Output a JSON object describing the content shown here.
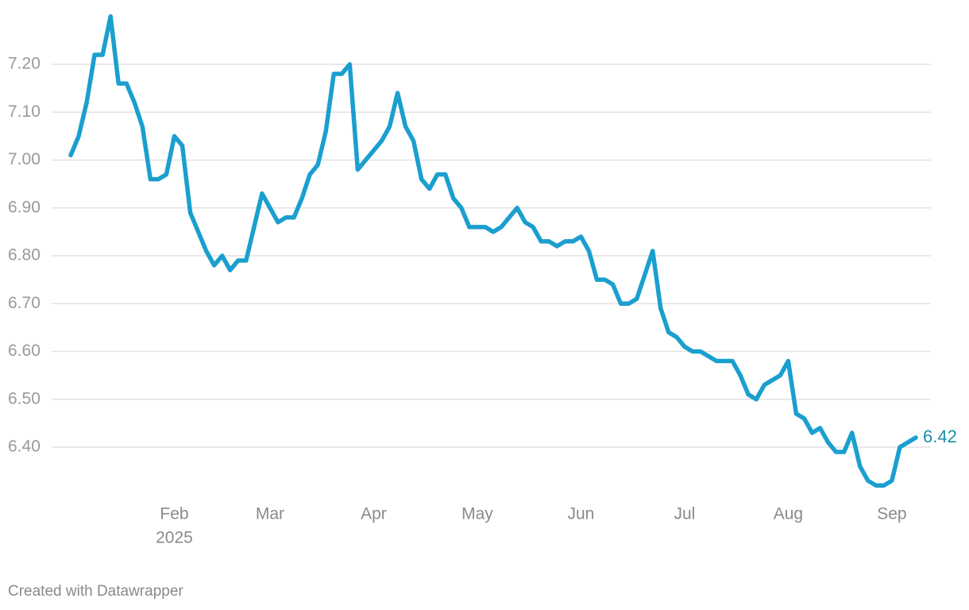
{
  "chart_data": {
    "type": "line",
    "categories": [
      null,
      null,
      null,
      null,
      null,
      null,
      null,
      null,
      null,
      null,
      null,
      null,
      null,
      "Feb",
      null,
      null,
      null,
      null,
      null,
      null,
      null,
      null,
      null,
      null,
      null,
      "Mar",
      null,
      null,
      null,
      null,
      null,
      null,
      null,
      null,
      null,
      null,
      null,
      null,
      "Apr",
      null,
      null,
      null,
      null,
      null,
      null,
      null,
      null,
      null,
      null,
      null,
      null,
      "May",
      null,
      null,
      null,
      null,
      null,
      null,
      null,
      null,
      null,
      null,
      null,
      null,
      "Jun",
      null,
      null,
      null,
      null,
      null,
      null,
      null,
      null,
      null,
      null,
      null,
      null,
      "Jul",
      null,
      null,
      null,
      null,
      null,
      null,
      null,
      null,
      null,
      null,
      null,
      null,
      "Aug",
      null,
      null,
      null,
      null,
      null,
      null,
      null,
      null,
      null,
      null,
      null,
      null,
      "Sep",
      null,
      null,
      null
    ],
    "year": "2025",
    "values": [
      7.01,
      7.05,
      7.12,
      7.22,
      7.22,
      7.3,
      7.16,
      7.16,
      7.12,
      7.07,
      6.96,
      6.96,
      6.97,
      7.05,
      7.03,
      6.89,
      6.85,
      6.81,
      6.78,
      6.8,
      6.77,
      6.79,
      6.79,
      6.86,
      6.93,
      6.9,
      6.87,
      6.88,
      6.88,
      6.92,
      6.97,
      6.99,
      7.06,
      7.18,
      7.18,
      7.2,
      6.98,
      7.0,
      7.02,
      7.04,
      7.07,
      7.14,
      7.07,
      7.04,
      6.96,
      6.94,
      6.97,
      6.97,
      6.92,
      6.9,
      6.86,
      6.86,
      6.86,
      6.85,
      6.86,
      6.88,
      6.9,
      6.87,
      6.86,
      6.83,
      6.83,
      6.82,
      6.83,
      6.83,
      6.84,
      6.81,
      6.75,
      6.75,
      6.74,
      6.7,
      6.7,
      6.71,
      6.76,
      6.81,
      6.69,
      6.64,
      6.63,
      6.61,
      6.6,
      6.6,
      6.59,
      6.58,
      6.58,
      6.58,
      6.55,
      6.51,
      6.5,
      6.53,
      6.54,
      6.55,
      6.58,
      6.47,
      6.46,
      6.43,
      6.44,
      6.41,
      6.39,
      6.39,
      6.43,
      6.36,
      6.33,
      6.32,
      6.32,
      6.33,
      6.4,
      6.41,
      6.42
    ],
    "color": "#1a9fcf",
    "ylim": [
      6.3,
      7.3
    ],
    "yticks": [
      {
        "value": 6.4,
        "label": "6.40"
      },
      {
        "value": 6.5,
        "label": "6.50"
      },
      {
        "value": 6.6,
        "label": "6.60"
      },
      {
        "value": 6.7,
        "label": "6.70"
      },
      {
        "value": 6.8,
        "label": "6.80"
      },
      {
        "value": 6.9,
        "label": "6.90"
      },
      {
        "value": 7.0,
        "label": "7.00"
      },
      {
        "value": 7.1,
        "label": "7.10"
      },
      {
        "value": 7.2,
        "label": "7.20"
      }
    ],
    "grid": true,
    "end_label": true,
    "credit": "Created with Datawrapper"
  }
}
